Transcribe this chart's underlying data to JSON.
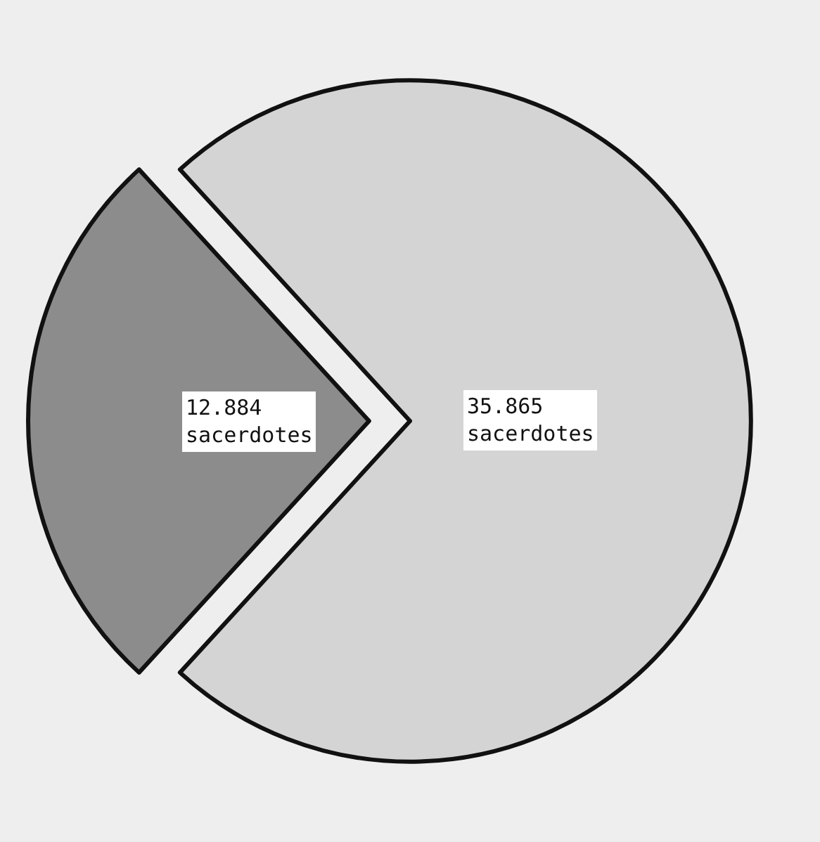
{
  "chart_data": {
    "type": "pie",
    "categories": [
      null,
      null
    ],
    "values": [
      12884,
      35865
    ],
    "value_labels": [
      "12.884\nsacerdotes",
      "35.865\nsacerdotes"
    ],
    "colors": [
      "#8c8c8c",
      "#d4d4d4"
    ]
  }
}
